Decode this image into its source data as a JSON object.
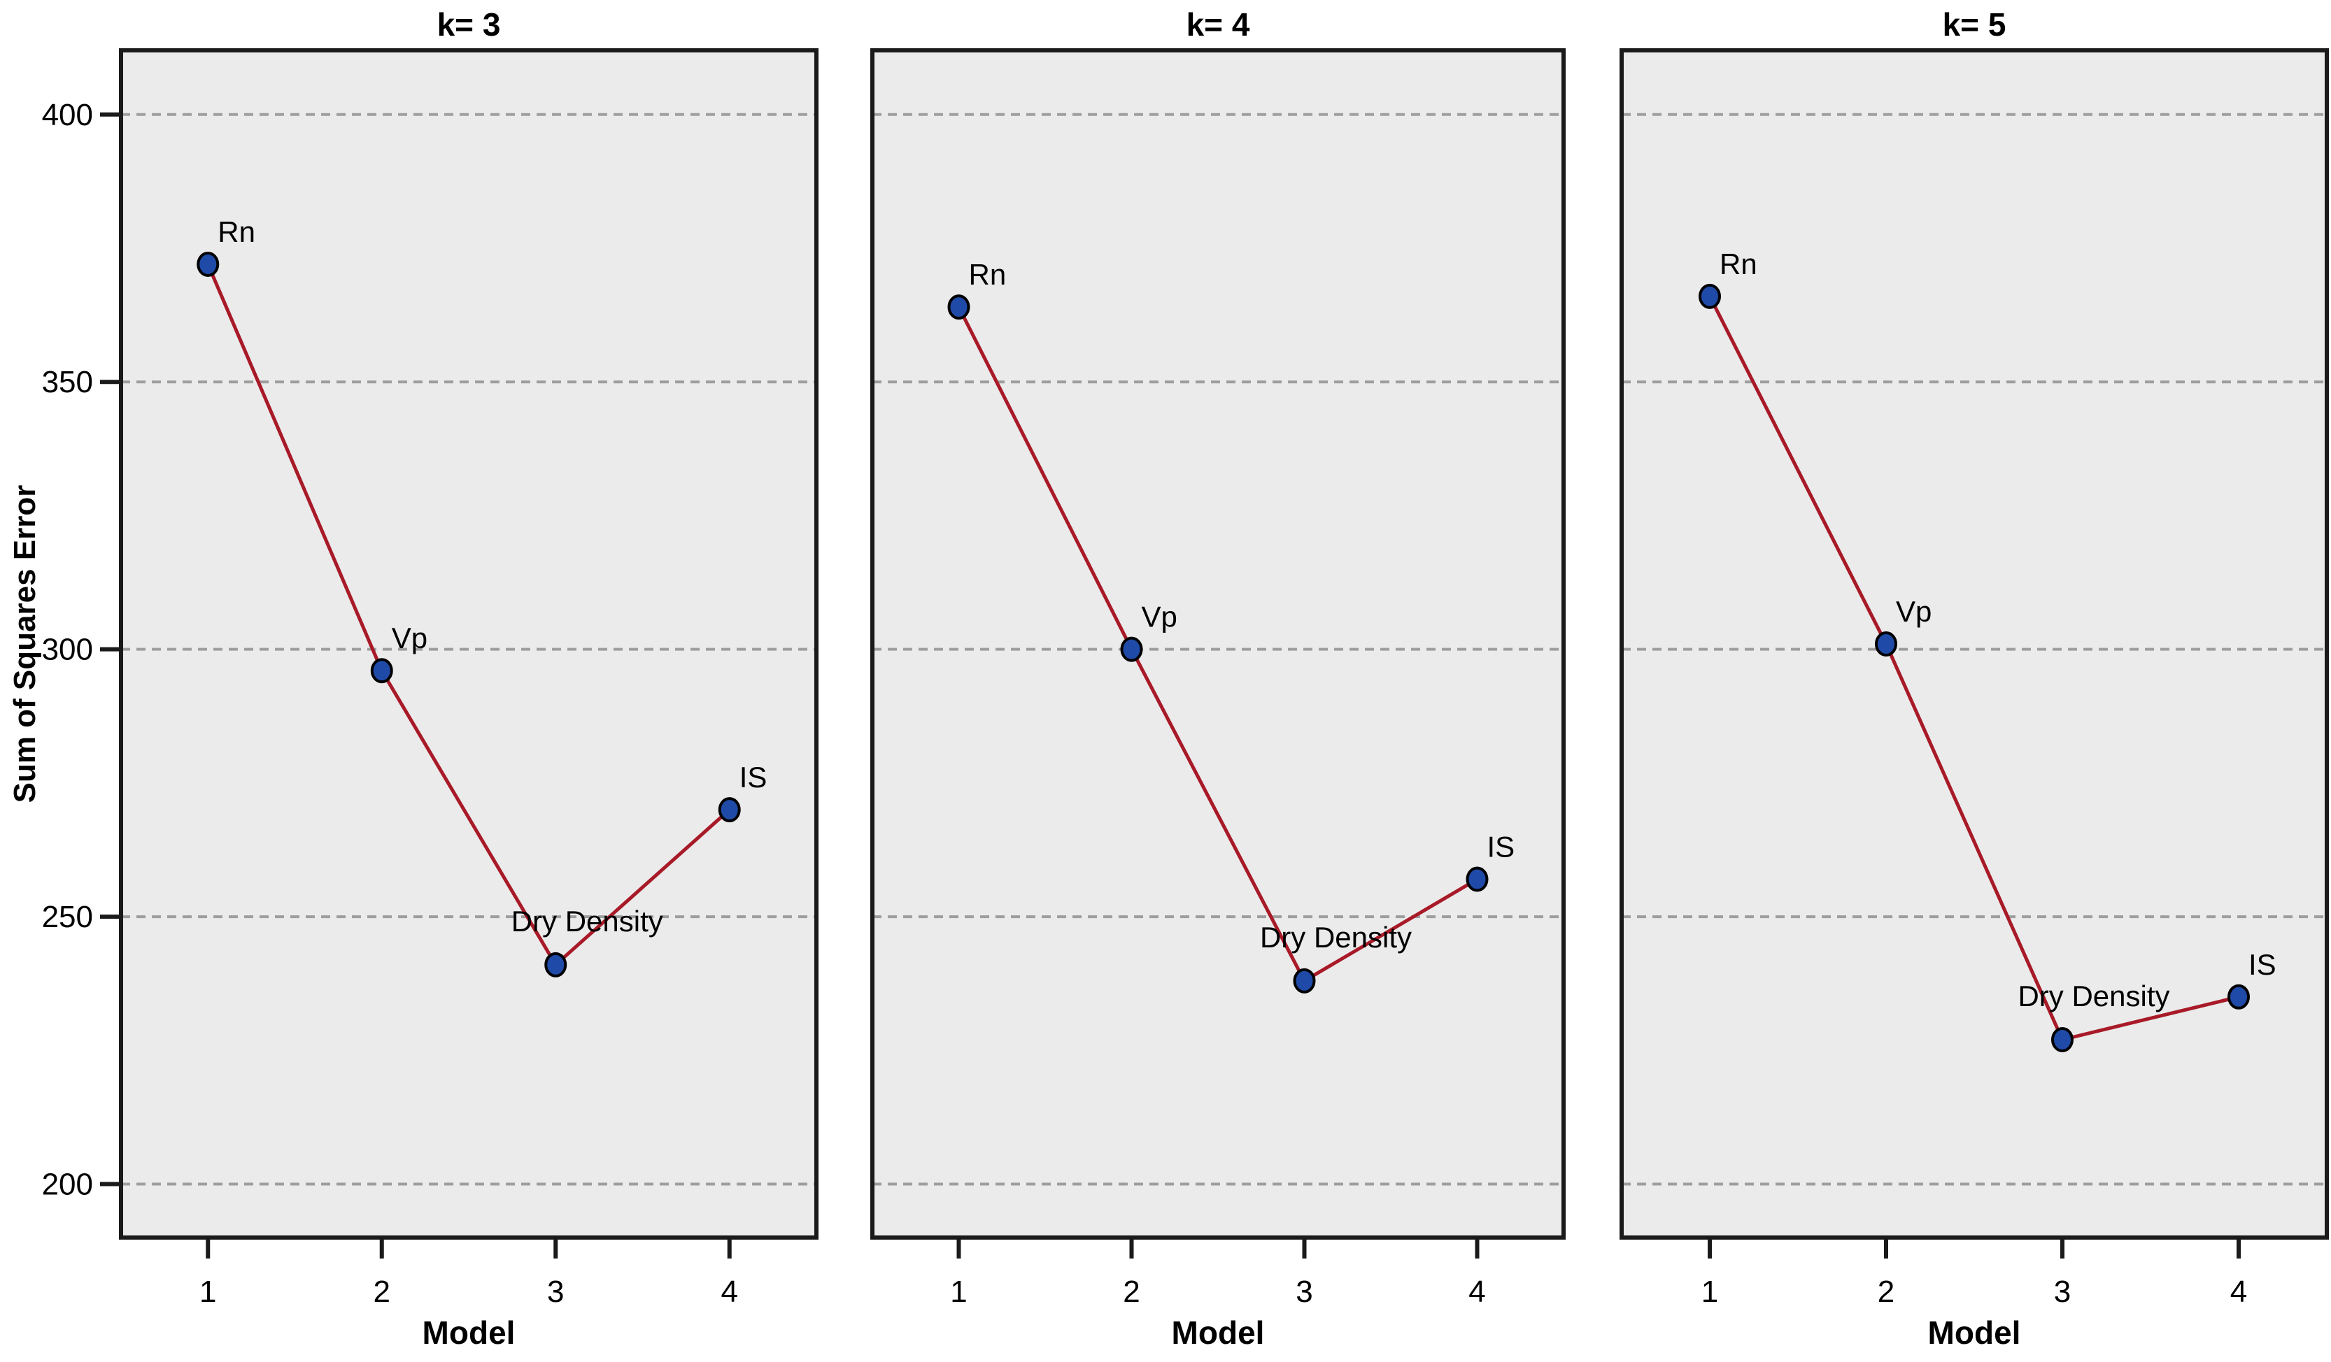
{
  "y_axis_label": "Sum of Squares Error",
  "colors": {
    "line": "#A81A28",
    "marker_fill": "#1F4AA8",
    "marker_stroke": "#000000",
    "plot_bg": "#EBEBEB",
    "grid": "#9E9E9E",
    "border": "#1A1A1A",
    "text": "#000000"
  },
  "chart_data": [
    {
      "type": "line",
      "title": "k= 3",
      "xlabel": "Model",
      "ylabel": "Sum of Squares Error",
      "x": [
        1,
        2,
        3,
        4
      ],
      "values": [
        372,
        296,
        241,
        270
      ],
      "point_labels": [
        "Rn",
        "Vp",
        "Dry Density",
        "IS"
      ],
      "xticks": [
        1,
        2,
        3,
        4
      ],
      "yticks": [
        200,
        250,
        300,
        350,
        400
      ],
      "xlim": [
        0.5,
        4.5
      ],
      "ylim": [
        190,
        412
      ],
      "grid": "horizontal-dashed",
      "show_y_tick_labels": true
    },
    {
      "type": "line",
      "title": "k= 4",
      "xlabel": "Model",
      "ylabel": "Sum of Squares Error",
      "x": [
        1,
        2,
        3,
        4
      ],
      "values": [
        364,
        300,
        238,
        257
      ],
      "point_labels": [
        "Rn",
        "Vp",
        "Dry Density",
        "IS"
      ],
      "xticks": [
        1,
        2,
        3,
        4
      ],
      "yticks": [
        200,
        250,
        300,
        350,
        400
      ],
      "xlim": [
        0.5,
        4.5
      ],
      "ylim": [
        190,
        412
      ],
      "grid": "horizontal-dashed",
      "show_y_tick_labels": false
    },
    {
      "type": "line",
      "title": "k= 5",
      "xlabel": "Model",
      "ylabel": "Sum of Squares Error",
      "x": [
        1,
        2,
        3,
        4
      ],
      "values": [
        366,
        301,
        227,
        235
      ],
      "point_labels": [
        "Rn",
        "Vp",
        "Dry Density",
        "IS"
      ],
      "xticks": [
        1,
        2,
        3,
        4
      ],
      "yticks": [
        200,
        250,
        300,
        350,
        400
      ],
      "xlim": [
        0.5,
        4.5
      ],
      "ylim": [
        190,
        412
      ],
      "grid": "horizontal-dashed",
      "show_y_tick_labels": false
    }
  ]
}
